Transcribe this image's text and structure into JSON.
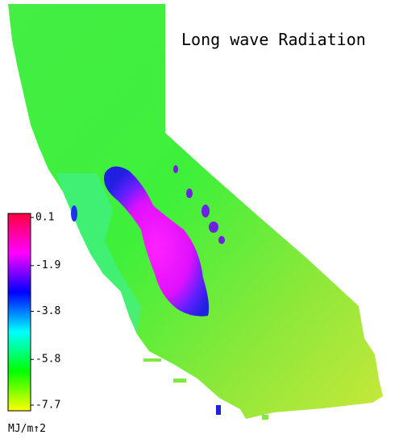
{
  "map": {
    "title": "Long wave Radiation",
    "colorbar": {
      "clim": [
        -7.7,
        0.1
      ],
      "ticks": [
        0.1,
        -1.9,
        -3.8,
        -5.8,
        -7.7
      ],
      "colors": [
        "#ff0040",
        "#ff00ff",
        "#0000ff",
        "#00ffff",
        "#00ff00",
        "#ffff00"
      ],
      "unit": "MJ/m↑2"
    }
  }
}
